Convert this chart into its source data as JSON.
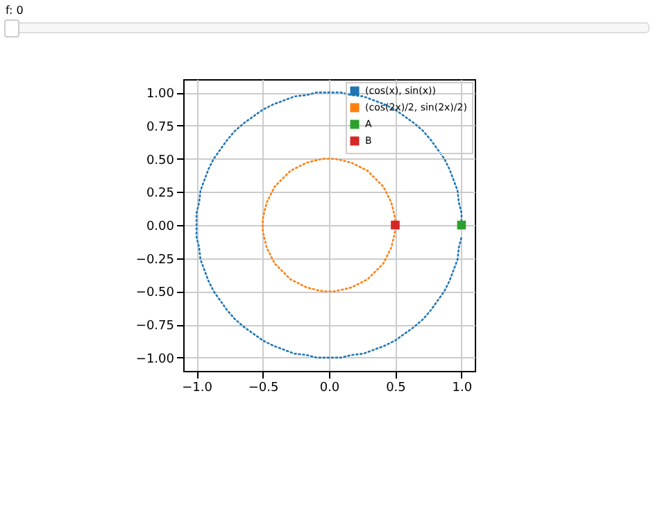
{
  "chart_data": {
    "type": "line",
    "annotations": [
      "f: 0"
    ],
    "xlim": [
      -1.1,
      1.1
    ],
    "ylim": [
      -1.1,
      1.1
    ],
    "xticks": [
      {
        "value": -1,
        "label": "−1.0"
      },
      {
        "value": -0.5,
        "label": "−0.5"
      },
      {
        "value": 0,
        "label": "0.0"
      },
      {
        "value": 0.5,
        "label": "0.5"
      },
      {
        "value": 1,
        "label": "1.0"
      }
    ],
    "yticks": [
      {
        "value": -1,
        "label": "−1.00"
      },
      {
        "value": -0.75,
        "label": "−0.75"
      },
      {
        "value": -0.5,
        "label": "−0.50"
      },
      {
        "value": -0.25,
        "label": "−0.25"
      },
      {
        "value": 0,
        "label": "0.00"
      },
      {
        "value": 0.25,
        "label": "0.25"
      },
      {
        "value": 0.5,
        "label": "0.50"
      },
      {
        "value": 0.75,
        "label": "0.75"
      },
      {
        "value": 1,
        "label": "1.00"
      }
    ],
    "grid": true,
    "legend": "top right",
    "series": [
      {
        "name": "(cos(x), sin(x))",
        "type": "line",
        "line_style": "dotted",
        "color": "#1f77b4",
        "x": [
          1,
          1,
          0.98,
          0.97,
          0.94,
          0.91,
          0.87,
          0.82,
          0.77,
          0.71,
          0.64,
          0.57,
          0.5,
          0.42,
          0.34,
          0.26,
          0.17,
          0.09,
          0,
          -0.09,
          -0.17,
          -0.26,
          -0.34,
          -0.42,
          -0.5,
          -0.57,
          -0.64,
          -0.71,
          -0.77,
          -0.82,
          -0.87,
          -0.91,
          -0.94,
          -0.97,
          -0.98,
          -1,
          -1,
          -1,
          -0.98,
          -0.97,
          -0.94,
          -0.91,
          -0.87,
          -0.82,
          -0.77,
          -0.71,
          -0.64,
          -0.57,
          -0.5,
          -0.42,
          -0.34,
          -0.26,
          -0.17,
          -0.09,
          0,
          0.09,
          0.17,
          0.26,
          0.34,
          0.42,
          0.5,
          0.57,
          0.64,
          0.71,
          0.77,
          0.82,
          0.87,
          0.91,
          0.94,
          0.97,
          0.98,
          1
        ],
        "values": [
          0,
          0.09,
          0.17,
          0.26,
          0.34,
          0.42,
          0.5,
          0.57,
          0.64,
          0.71,
          0.77,
          0.82,
          0.87,
          0.91,
          0.94,
          0.97,
          0.98,
          1,
          1,
          1,
          0.98,
          0.97,
          0.94,
          0.91,
          0.87,
          0.82,
          0.77,
          0.71,
          0.64,
          0.57,
          0.5,
          0.42,
          0.34,
          0.26,
          0.17,
          0.09,
          0,
          -0.09,
          -0.17,
          -0.26,
          -0.34,
          -0.42,
          -0.5,
          -0.57,
          -0.64,
          -0.71,
          -0.77,
          -0.82,
          -0.87,
          -0.91,
          -0.94,
          -0.97,
          -0.98,
          -1,
          -1,
          -1,
          -0.98,
          -0.97,
          -0.94,
          -0.91,
          -0.87,
          -0.82,
          -0.77,
          -0.71,
          -0.64,
          -0.57,
          -0.5,
          -0.42,
          -0.34,
          -0.26,
          -0.17,
          -0.09
        ]
      },
      {
        "name": "(cos(2x)/2, sin(2x)/2)",
        "type": "line",
        "line_style": "dotted",
        "color": "#ff7f0e",
        "x": [
          0.5,
          0.5,
          0.49,
          0.48,
          0.47,
          0.45,
          0.43,
          0.41,
          0.38,
          0.35,
          0.32,
          0.29,
          0.25,
          0.21,
          0.17,
          0.13,
          0.09,
          0.04,
          0,
          -0.04,
          -0.09,
          -0.13,
          -0.17,
          -0.21,
          -0.25,
          -0.29,
          -0.32,
          -0.35,
          -0.38,
          -0.41,
          -0.43,
          -0.45,
          -0.47,
          -0.48,
          -0.49,
          -0.5,
          -0.5,
          -0.5,
          -0.49,
          -0.48,
          -0.47,
          -0.45,
          -0.43,
          -0.41,
          -0.38,
          -0.35,
          -0.32,
          -0.29,
          -0.25,
          -0.21,
          -0.17,
          -0.13,
          -0.09,
          -0.04,
          0,
          0.04,
          0.09,
          0.13,
          0.17,
          0.21,
          0.25,
          0.29,
          0.32,
          0.35,
          0.38,
          0.41,
          0.43,
          0.45,
          0.47,
          0.48,
          0.49,
          0.5
        ],
        "values": [
          0,
          0.04,
          0.09,
          0.13,
          0.17,
          0.21,
          0.25,
          0.29,
          0.32,
          0.35,
          0.38,
          0.41,
          0.43,
          0.45,
          0.47,
          0.48,
          0.49,
          0.5,
          0.5,
          0.5,
          0.49,
          0.48,
          0.47,
          0.45,
          0.43,
          0.41,
          0.38,
          0.35,
          0.32,
          0.29,
          0.25,
          0.21,
          0.17,
          0.13,
          0.09,
          0.04,
          0,
          -0.04,
          -0.09,
          -0.13,
          -0.17,
          -0.21,
          -0.25,
          -0.29,
          -0.32,
          -0.35,
          -0.38,
          -0.41,
          -0.43,
          -0.45,
          -0.47,
          -0.48,
          -0.49,
          -0.5,
          -0.5,
          -0.5,
          -0.49,
          -0.48,
          -0.47,
          -0.45,
          -0.43,
          -0.41,
          -0.38,
          -0.35,
          -0.32,
          -0.29,
          -0.25,
          -0.21,
          -0.17,
          -0.13,
          -0.09,
          -0.04
        ]
      },
      {
        "name": "A",
        "type": "scatter",
        "marker": "square",
        "color": "#2ca02c",
        "x": [
          1
        ],
        "values": [
          0
        ]
      },
      {
        "name": "B",
        "type": "scatter",
        "marker": "square",
        "color": "#d62728",
        "x": [
          0.5
        ],
        "values": [
          0
        ]
      }
    ]
  }
}
